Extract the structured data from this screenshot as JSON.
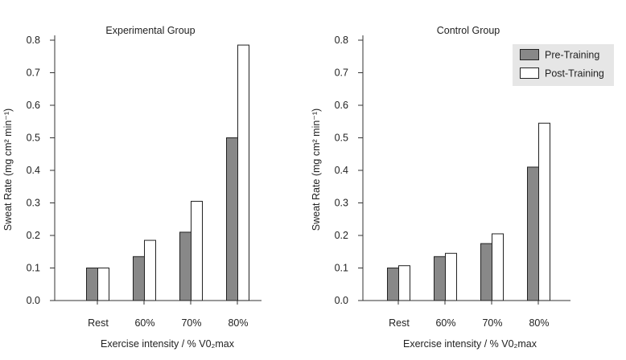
{
  "chart_data": [
    {
      "type": "bar",
      "title": "Experimental Group",
      "categories": [
        "Rest",
        "60%",
        "70%",
        "80%"
      ],
      "xlabel": "Exercise intensity / % V0₂max",
      "ylabel": "Sweat Rate (mg cm² min⁻¹)",
      "ylim": [
        0,
        0.8
      ],
      "yticks": [
        "0.0",
        "0.1",
        "0.2",
        "0.3",
        "0.4",
        "0.5",
        "0.6",
        "0.7",
        "0.8"
      ],
      "legend": false,
      "series": [
        {
          "name": "Pre-Training",
          "color": "#888888",
          "values": [
            0.1,
            0.135,
            0.21,
            0.5
          ]
        },
        {
          "name": "Post-Training",
          "color": "#ffffff",
          "values": [
            0.1,
            0.185,
            0.305,
            0.785
          ]
        }
      ]
    },
    {
      "type": "bar",
      "title": "Control Group",
      "categories": [
        "Rest",
        "60%",
        "70%",
        "80%"
      ],
      "xlabel": "Exercise intensity / % V0₂max",
      "ylabel": "Sweat Rate (mg cm² min⁻¹)",
      "ylim": [
        0,
        0.8
      ],
      "yticks": [
        "0.0",
        "0.1",
        "0.2",
        "0.3",
        "0.4",
        "0.5",
        "0.6",
        "0.7",
        "0.8"
      ],
      "legend": true,
      "legend_position": "top-right",
      "series": [
        {
          "name": "Pre-Training",
          "color": "#888888",
          "values": [
            0.1,
            0.135,
            0.175,
            0.41
          ]
        },
        {
          "name": "Post-Training",
          "color": "#ffffff",
          "values": [
            0.107,
            0.145,
            0.205,
            0.545
          ]
        }
      ]
    }
  ]
}
